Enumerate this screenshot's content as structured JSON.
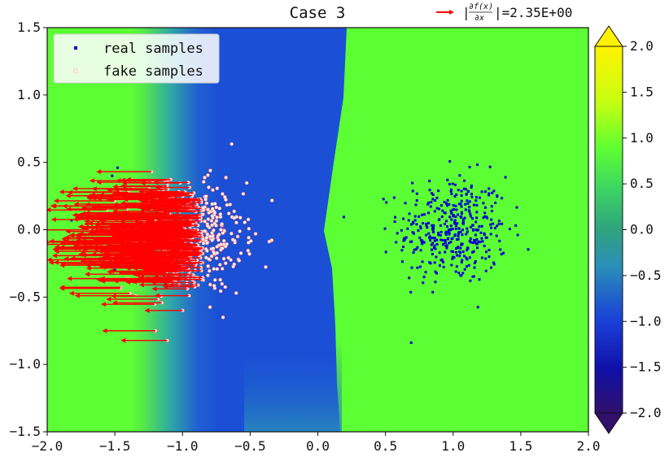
{
  "chart_data": {
    "type": "scatter",
    "title": "Case 3",
    "xlim": [
      -2.0,
      2.0
    ],
    "ylim": [
      -1.5,
      1.5
    ],
    "x_ticks": [
      "−2.0",
      "−1.5",
      "−1.0",
      "−0.5",
      "0.0",
      "0.5",
      "1.0",
      "1.5",
      "2.0"
    ],
    "y_ticks": [
      "1.5",
      "1.0",
      "0.5",
      "0.0",
      "−0.5",
      "−1.0",
      "−1.5"
    ],
    "x_tick_values": [
      -2.0,
      -1.5,
      -1.0,
      -0.5,
      0.0,
      0.5,
      1.0,
      1.5,
      2.0
    ],
    "y_tick_values": [
      1.5,
      1.0,
      0.5,
      0.0,
      -0.5,
      -1.0,
      -1.5
    ],
    "legend": {
      "placement": "upper-left",
      "entries": [
        {
          "label": "real samples",
          "color": "#0000cc"
        },
        {
          "label": "fake samples",
          "color": "#ffffff"
        }
      ]
    },
    "quiver_key": {
      "prefix": "|",
      "numerator": "∂f(x)",
      "denominator": "∂x",
      "suffix": "|=2.35E+00",
      "color": "#ff0000"
    },
    "colorbar": {
      "range": [
        -2.0,
        2.0
      ],
      "extend": "both",
      "colormap": "viridis-like (purple-blue-green-yellow)",
      "ticks": [
        "2.0",
        "1.5",
        "1.0",
        "0.5",
        "0.0",
        "−0.5",
        "−1.0",
        "−1.5",
        "−2.0"
      ],
      "tick_values": [
        2.0,
        1.5,
        1.0,
        0.5,
        0.0,
        -0.5,
        -1.0,
        -1.5,
        -2.0
      ]
    },
    "series": [
      {
        "name": "real samples",
        "center": [
          1.0,
          0.0
        ],
        "spread": [
          0.2,
          0.2
        ],
        "count": 400,
        "color": "#0000cc"
      },
      {
        "name": "fake samples",
        "center": [
          -1.0,
          -0.05
        ],
        "spread": [
          0.22,
          0.2
        ],
        "count": 700,
        "color": "#ffffff",
        "edge": "#ff6666"
      }
    ],
    "arrows": {
      "color": "#ff0000",
      "direction": "left",
      "x_range": [
        -1.3,
        -0.85
      ],
      "length_range": [
        0.2,
        0.45
      ]
    },
    "field_colors": {
      "background": "#5cff33",
      "low": "#1a4fd6",
      "gradient_mid": "#2f9fae"
    }
  }
}
